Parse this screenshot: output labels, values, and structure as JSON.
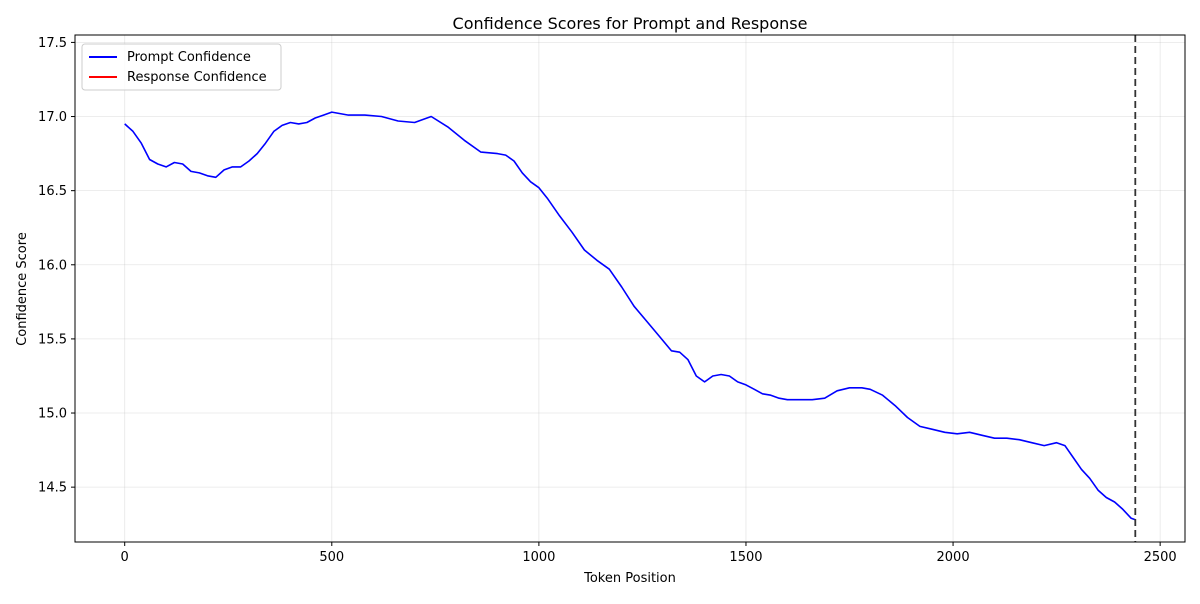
{
  "chart_data": {
    "type": "line",
    "title": "Confidence Scores for Prompt and Response",
    "xlabel": "Token Position",
    "ylabel": "Confidence Score",
    "xlim": [
      -120,
      2560
    ],
    "ylim": [
      14.13,
      17.55
    ],
    "xticks": [
      0,
      500,
      1000,
      1500,
      2000,
      2500
    ],
    "xtick_labels": [
      "0",
      "500",
      "1000",
      "1500",
      "2000",
      "2500"
    ],
    "yticks": [
      14.5,
      15.0,
      15.5,
      16.0,
      16.5,
      17.0,
      17.5
    ],
    "ytick_labels": [
      "14.5",
      "15.0",
      "15.5",
      "16.0",
      "16.5",
      "17.0",
      "17.5"
    ],
    "grid": true,
    "legend_position": "top-left",
    "boundary_x": 2440,
    "series": [
      {
        "name": "Prompt Confidence",
        "color": "#0000ff",
        "x": [
          0,
          20,
          40,
          60,
          80,
          100,
          120,
          140,
          160,
          180,
          200,
          220,
          240,
          260,
          280,
          300,
          320,
          340,
          360,
          380,
          400,
          420,
          440,
          460,
          480,
          500,
          540,
          580,
          620,
          660,
          700,
          740,
          780,
          820,
          860,
          900,
          920,
          940,
          960,
          980,
          1000,
          1020,
          1050,
          1080,
          1110,
          1140,
          1170,
          1200,
          1230,
          1260,
          1290,
          1320,
          1340,
          1360,
          1380,
          1400,
          1420,
          1440,
          1460,
          1480,
          1500,
          1520,
          1540,
          1560,
          1580,
          1600,
          1630,
          1660,
          1690,
          1720,
          1750,
          1780,
          1800,
          1830,
          1860,
          1890,
          1920,
          1950,
          1980,
          2010,
          2040,
          2070,
          2100,
          2130,
          2160,
          2190,
          2220,
          2250,
          2270,
          2290,
          2310,
          2330,
          2350,
          2370,
          2390,
          2410,
          2430,
          2440
        ],
        "values": [
          16.95,
          16.9,
          16.82,
          16.71,
          16.68,
          16.66,
          16.69,
          16.68,
          16.63,
          16.62,
          16.6,
          16.59,
          16.64,
          16.66,
          16.66,
          16.7,
          16.75,
          16.82,
          16.9,
          16.94,
          16.96,
          16.95,
          16.96,
          16.99,
          17.01,
          17.03,
          17.01,
          17.01,
          17.0,
          16.97,
          16.96,
          17.0,
          16.93,
          16.84,
          16.76,
          16.75,
          16.74,
          16.7,
          16.62,
          16.56,
          16.52,
          16.45,
          16.33,
          16.22,
          16.1,
          16.03,
          15.97,
          15.85,
          15.72,
          15.62,
          15.52,
          15.42,
          15.41,
          15.36,
          15.25,
          15.21,
          15.25,
          15.26,
          15.25,
          15.21,
          15.19,
          15.16,
          15.13,
          15.12,
          15.1,
          15.09,
          15.09,
          15.09,
          15.1,
          15.15,
          15.17,
          15.17,
          15.16,
          15.12,
          15.05,
          14.97,
          14.91,
          14.89,
          14.87,
          14.86,
          14.87,
          14.85,
          14.83,
          14.83,
          14.82,
          14.8,
          14.78,
          14.8,
          14.78,
          14.7,
          14.62,
          14.56,
          14.48,
          14.43,
          14.4,
          14.35,
          14.29,
          14.28
        ]
      },
      {
        "name": "Response Confidence",
        "color": "#ff0000",
        "x": [],
        "values": []
      }
    ]
  }
}
